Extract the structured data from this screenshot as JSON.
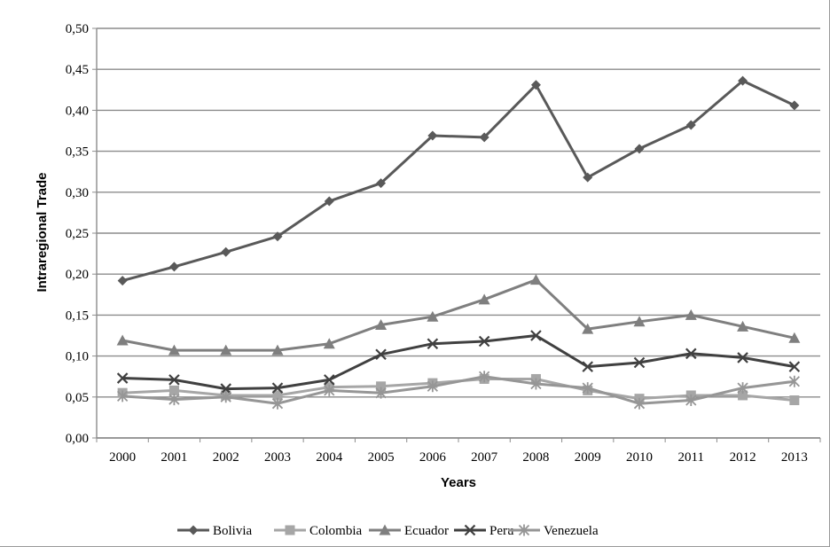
{
  "chart_data": {
    "type": "line",
    "xlabel": "Years",
    "ylabel": "Intraregional Trade",
    "ylim": [
      0,
      0.5
    ],
    "y_ticks": [
      "0,00",
      "0,05",
      "0,10",
      "0,15",
      "0,20",
      "0,25",
      "0,30",
      "0,35",
      "0,40",
      "0,45",
      "0,50"
    ],
    "categories": [
      "2000",
      "2001",
      "2002",
      "2003",
      "2004",
      "2005",
      "2006",
      "2007",
      "2008",
      "2009",
      "2010",
      "2011",
      "2012",
      "2013"
    ],
    "grid": "horizontal",
    "legend_position": "bottom",
    "series": [
      {
        "name": "Bolivia",
        "color": "#595959",
        "marker": "diamond",
        "values": [
          0.192,
          0.209,
          0.227,
          0.246,
          0.289,
          0.311,
          0.369,
          0.367,
          0.431,
          0.318,
          0.353,
          0.382,
          0.436,
          0.406
        ]
      },
      {
        "name": "Colombia",
        "color": "#a6a6a6",
        "marker": "square",
        "values": [
          0.055,
          0.058,
          0.052,
          0.052,
          0.062,
          0.063,
          0.067,
          0.072,
          0.072,
          0.058,
          0.048,
          0.052,
          0.052,
          0.046
        ]
      },
      {
        "name": "Ecuador",
        "color": "#7f7f7f",
        "marker": "triangle",
        "values": [
          0.119,
          0.107,
          0.107,
          0.107,
          0.115,
          0.138,
          0.148,
          0.169,
          0.193,
          0.133,
          0.142,
          0.15,
          0.136,
          0.122
        ]
      },
      {
        "name": "Peru",
        "color": "#404040",
        "marker": "x",
        "values": [
          0.073,
          0.071,
          0.06,
          0.061,
          0.071,
          0.102,
          0.115,
          0.118,
          0.125,
          0.087,
          0.092,
          0.103,
          0.098,
          0.087
        ]
      },
      {
        "name": "Venezuela",
        "color": "#969696",
        "marker": "asterisk",
        "values": [
          0.051,
          0.047,
          0.05,
          0.042,
          0.058,
          0.055,
          0.063,
          0.075,
          0.066,
          0.061,
          0.042,
          0.046,
          0.061,
          0.069
        ]
      }
    ]
  }
}
